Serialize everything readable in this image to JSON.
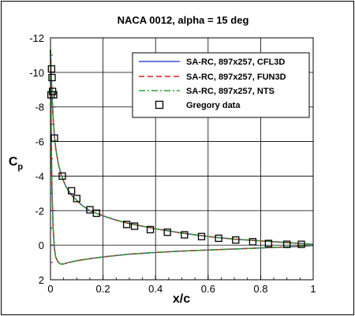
{
  "chart_data": {
    "type": "line",
    "title": "NACA 0012, alpha = 15 deg",
    "xlabel": "x/c",
    "ylabel": "C",
    "ylabel_sub": "p",
    "xlim": [
      0,
      1
    ],
    "ylim": [
      2,
      -12
    ],
    "y_inverted": true,
    "grid": true,
    "legend_position": "top-right",
    "x_ticks": [
      0,
      0.2,
      0.4,
      0.6,
      0.8,
      1
    ],
    "x_tick_labels": [
      "0",
      "0.2",
      "0.4",
      "0.6",
      "0.8",
      "1"
    ],
    "y_ticks": [
      -12,
      -10,
      -8,
      -6,
      -4,
      -2,
      0,
      2
    ],
    "y_tick_labels": [
      "-12",
      "-10",
      "-8",
      "-6",
      "-4",
      "-2",
      "0",
      "2"
    ],
    "series": [
      {
        "name": "SA-RC, 897x257, CFL3D",
        "color": "#3a4fd0",
        "dash": "solid",
        "upper": {
          "x": [
            0,
            0.001,
            0.002,
            0.004,
            0.006,
            0.008,
            0.01,
            0.015,
            0.02,
            0.03,
            0.04,
            0.05,
            0.06,
            0.08,
            0.1,
            0.12,
            0.15,
            0.2,
            0.25,
            0.3,
            0.4,
            0.5,
            0.6,
            0.7,
            0.8,
            0.9,
            1.0
          ],
          "y": [
            -11.3,
            -10.8,
            -10.2,
            -9.4,
            -8.6,
            -8.0,
            -7.4,
            -6.3,
            -5.6,
            -4.7,
            -4.1,
            -3.7,
            -3.35,
            -2.9,
            -2.6,
            -2.3,
            -2.0,
            -1.7,
            -1.45,
            -1.25,
            -0.95,
            -0.7,
            -0.5,
            -0.35,
            -0.25,
            -0.15,
            -0.05
          ]
        },
        "lower": {
          "x": [
            0,
            0.003,
            0.006,
            0.01,
            0.015,
            0.02,
            0.03,
            0.04,
            0.05,
            0.07,
            0.1,
            0.15,
            0.2,
            0.3,
            0.4,
            0.5,
            0.6,
            0.7,
            0.8,
            0.9,
            1.0
          ],
          "y": [
            -11.3,
            -6.0,
            -3.0,
            -1.0,
            0.2,
            0.7,
            1.0,
            1.1,
            1.08,
            1.0,
            0.9,
            0.78,
            0.68,
            0.52,
            0.42,
            0.34,
            0.28,
            0.22,
            0.16,
            0.1,
            0.02
          ]
        }
      },
      {
        "name": "SA-RC, 897x257, FUN3D",
        "color": "#d62020",
        "dash": "dashed",
        "upper": {
          "x": [
            0,
            0.001,
            0.002,
            0.004,
            0.006,
            0.008,
            0.01,
            0.015,
            0.02,
            0.03,
            0.04,
            0.05,
            0.06,
            0.08,
            0.1,
            0.12,
            0.15,
            0.2,
            0.25,
            0.3,
            0.4,
            0.5,
            0.6,
            0.7,
            0.8,
            0.9,
            1.0
          ],
          "y": [
            -11.3,
            -10.8,
            -10.2,
            -9.4,
            -8.6,
            -8.0,
            -7.4,
            -6.3,
            -5.6,
            -4.7,
            -4.1,
            -3.7,
            -3.35,
            -2.9,
            -2.6,
            -2.3,
            -2.0,
            -1.7,
            -1.45,
            -1.25,
            -0.95,
            -0.7,
            -0.5,
            -0.35,
            -0.25,
            -0.15,
            -0.05
          ]
        },
        "lower": {
          "x": [
            0,
            0.003,
            0.006,
            0.01,
            0.015,
            0.02,
            0.03,
            0.04,
            0.05,
            0.07,
            0.1,
            0.15,
            0.2,
            0.3,
            0.4,
            0.5,
            0.6,
            0.7,
            0.8,
            0.9,
            1.0
          ],
          "y": [
            -11.3,
            -6.0,
            -3.0,
            -1.0,
            0.2,
            0.7,
            1.0,
            1.1,
            1.08,
            1.0,
            0.9,
            0.78,
            0.68,
            0.52,
            0.42,
            0.34,
            0.28,
            0.22,
            0.16,
            0.1,
            0.02
          ]
        }
      },
      {
        "name": "SA-RC, 897x257, NTS",
        "color": "#2aa02a",
        "dash": "dashdot",
        "upper": {
          "x": [
            0,
            0.001,
            0.002,
            0.004,
            0.006,
            0.008,
            0.01,
            0.015,
            0.02,
            0.03,
            0.04,
            0.05,
            0.06,
            0.08,
            0.1,
            0.12,
            0.15,
            0.2,
            0.25,
            0.3,
            0.4,
            0.5,
            0.6,
            0.7,
            0.8,
            0.9,
            1.0
          ],
          "y": [
            -11.3,
            -10.8,
            -10.2,
            -9.4,
            -8.6,
            -8.0,
            -7.4,
            -6.3,
            -5.6,
            -4.7,
            -4.1,
            -3.7,
            -3.35,
            -2.9,
            -2.6,
            -2.3,
            -2.0,
            -1.7,
            -1.45,
            -1.25,
            -0.95,
            -0.7,
            -0.5,
            -0.35,
            -0.25,
            -0.15,
            -0.05
          ]
        },
        "lower": {
          "x": [
            0,
            0.003,
            0.006,
            0.01,
            0.015,
            0.02,
            0.03,
            0.04,
            0.05,
            0.07,
            0.1,
            0.15,
            0.2,
            0.3,
            0.4,
            0.5,
            0.6,
            0.7,
            0.8,
            0.9,
            1.0
          ],
          "y": [
            -11.3,
            -6.0,
            -3.0,
            -1.0,
            0.2,
            0.7,
            1.0,
            1.1,
            1.08,
            1.0,
            0.9,
            0.78,
            0.68,
            0.52,
            0.42,
            0.34,
            0.28,
            0.22,
            0.16,
            0.1,
            0.02
          ]
        }
      }
    ],
    "scatter": {
      "name": "Gregory data",
      "marker": "open-square",
      "color": "#000000",
      "x": [
        0.002,
        0.004,
        0.006,
        0.008,
        0.012,
        0.015,
        0.045,
        0.08,
        0.1,
        0.15,
        0.175,
        0.29,
        0.32,
        0.38,
        0.445,
        0.51,
        0.575,
        0.64,
        0.705,
        0.77,
        0.83,
        0.9,
        0.955
      ],
      "y": [
        -8.7,
        -10.2,
        -9.7,
        -8.9,
        -8.7,
        -6.2,
        -4.0,
        -3.15,
        -2.7,
        -2.05,
        -1.85,
        -1.2,
        -1.1,
        -0.9,
        -0.75,
        -0.6,
        -0.5,
        -0.4,
        -0.3,
        -0.2,
        -0.1,
        -0.05,
        -0.05
      ]
    }
  }
}
